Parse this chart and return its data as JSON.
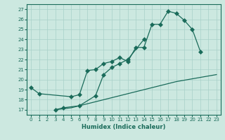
{
  "title": "",
  "xlabel": "Humidex (Indice chaleur)",
  "bg_color": "#cce8e0",
  "line_color": "#1a6b5a",
  "grid_color": "#a8d0c8",
  "xlim": [
    -0.5,
    23.5
  ],
  "ylim": [
    16.5,
    27.5
  ],
  "xticks": [
    0,
    1,
    2,
    3,
    4,
    5,
    6,
    7,
    8,
    9,
    10,
    11,
    12,
    13,
    14,
    15,
    16,
    17,
    18,
    19,
    20,
    21,
    22,
    23
  ],
  "yticks": [
    17,
    18,
    19,
    20,
    21,
    22,
    23,
    24,
    25,
    26,
    27
  ],
  "line1_x": [
    0,
    1,
    5,
    6,
    7,
    8,
    9,
    10,
    11,
    12,
    13,
    14,
    15,
    16,
    17,
    18,
    19,
    20,
    21
  ],
  "line1_y": [
    19.2,
    18.6,
    18.3,
    18.5,
    20.9,
    21.0,
    21.6,
    21.8,
    22.2,
    21.8,
    23.2,
    23.2,
    25.5,
    25.5,
    26.8,
    26.6,
    25.9,
    25.0,
    22.8
  ],
  "line2_x": [
    3,
    4,
    6,
    8,
    9,
    10,
    11,
    12,
    14
  ],
  "line2_y": [
    17.0,
    17.2,
    17.4,
    18.4,
    20.5,
    21.2,
    21.6,
    22.0,
    24.0
  ],
  "line3_x": [
    3,
    5,
    18,
    23
  ],
  "line3_y": [
    17.0,
    17.2,
    19.8,
    20.5
  ],
  "markersize": 3
}
